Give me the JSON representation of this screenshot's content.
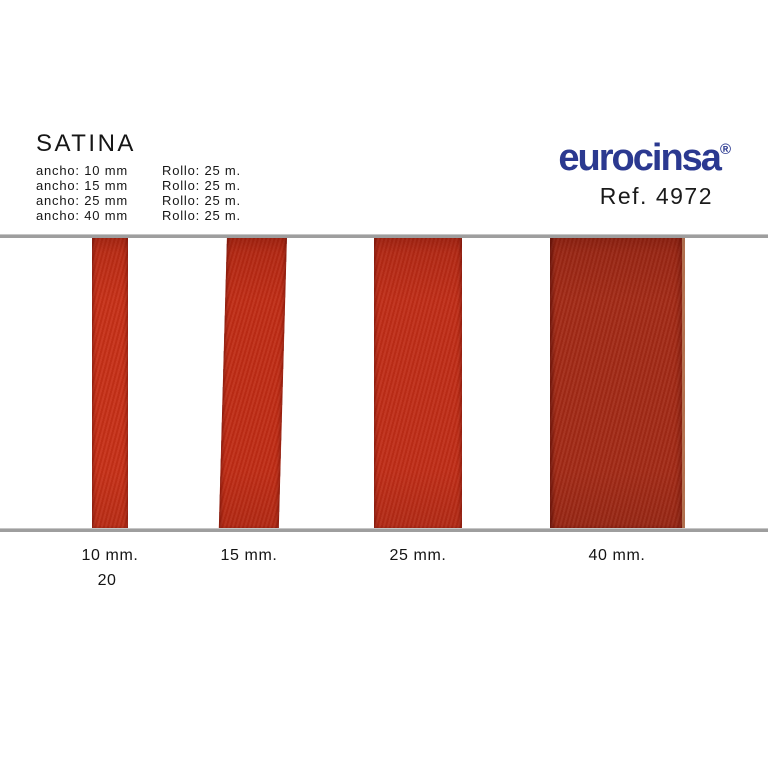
{
  "header": {
    "title": "SATINA",
    "specs": [
      {
        "width": "ancho: 10 mm",
        "roll": "Rollo: 25 m."
      },
      {
        "width": "ancho: 15 mm",
        "roll": "Rollo: 25 m."
      },
      {
        "width": "ancho: 25 mm",
        "roll": "Rollo: 25 m."
      },
      {
        "width": "ancho: 40 mm",
        "roll": "Rollo: 25 m."
      }
    ]
  },
  "brand": {
    "logo_text": "eurocinsa",
    "registered_mark": "®",
    "reference": "Ref. 4972",
    "logo_color": "#2b3990"
  },
  "samples": {
    "ribbons": [
      {
        "label": "10 mm.",
        "color": "#c73017"
      },
      {
        "label": "15 mm.",
        "color": "#c02c15"
      },
      {
        "label": "25 mm.",
        "color": "#c02d17"
      },
      {
        "label": "40 mm.",
        "color": "#a32a16"
      }
    ]
  },
  "footer": {
    "page_number": "20"
  }
}
